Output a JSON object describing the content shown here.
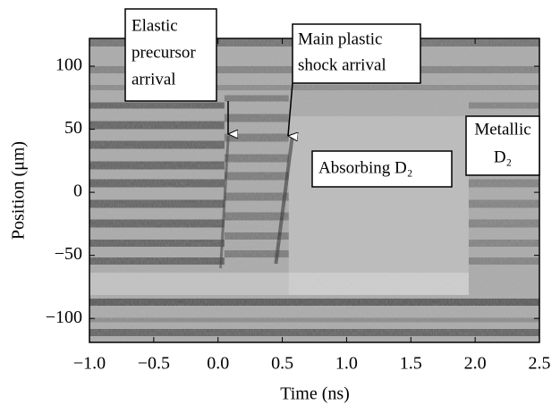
{
  "chart_data": {
    "type": "image",
    "xlabel": "Time (ns)",
    "ylabel": "Position (μm)",
    "xlim": [
      -1.0,
      2.5
    ],
    "ylim": [
      -119,
      122
    ],
    "xticks": [
      {
        "value": -1.0,
        "label": "−1.0"
      },
      {
        "value": -0.5,
        "label": "−0.5"
      },
      {
        "value": 0.0,
        "label": "0.0"
      },
      0.5,
      {
        "value": 1.0,
        "label": "1.0"
      },
      1.5,
      {
        "value": 2.0,
        "label": "2.0"
      },
      2.5
    ],
    "yticks": [
      {
        "value": -100,
        "label": "−100"
      },
      {
        "value": -50,
        "label": "−50"
      },
      0,
      50,
      100
    ],
    "annotations": [
      {
        "lines": [
          "Elastic",
          "precursor",
          "arrival"
        ]
      },
      {
        "lines": [
          "Main plastic",
          "shock arrival"
        ]
      },
      {
        "lines": [
          "Absorbing D₂"
        ]
      },
      {
        "lines": [
          "Metallic",
          "D₂"
        ]
      }
    ]
  }
}
